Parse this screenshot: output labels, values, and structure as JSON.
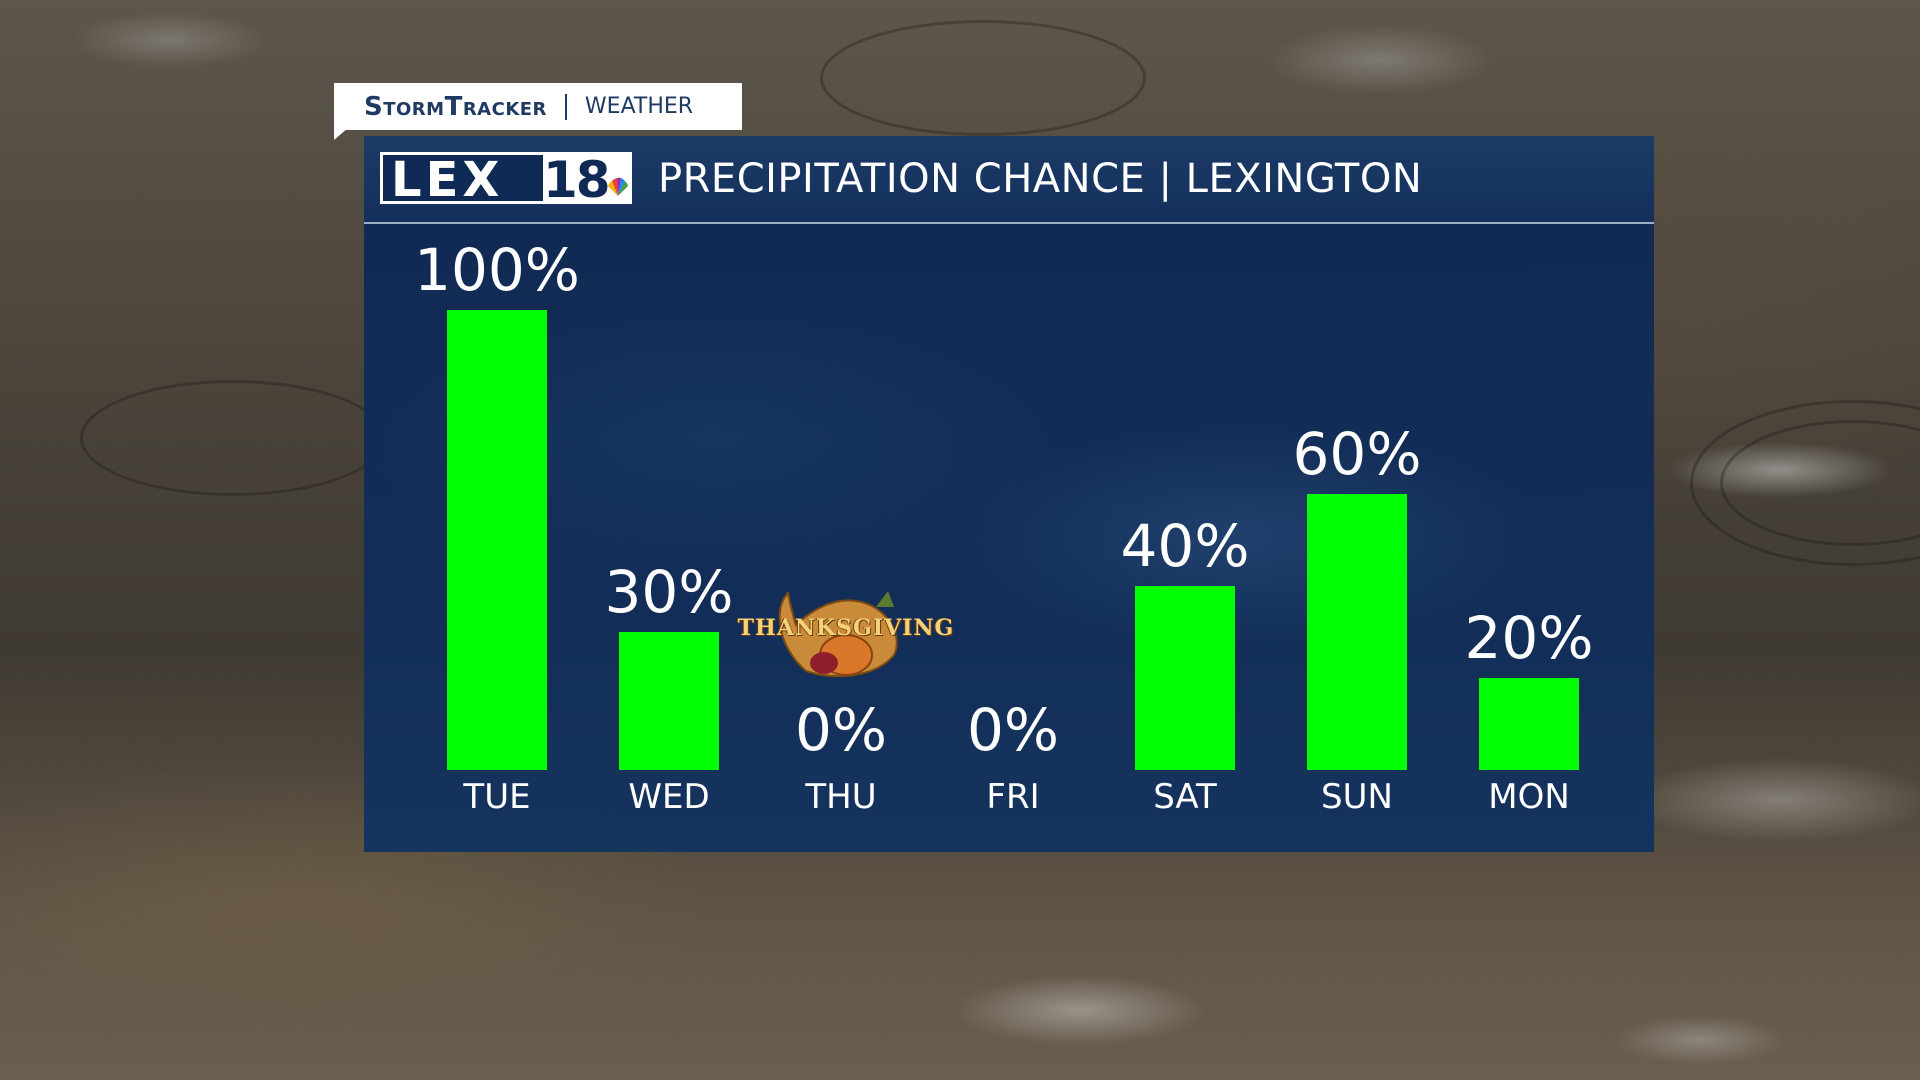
{
  "header_tag": {
    "brand": "StormTracker",
    "section": "WEATHER"
  },
  "logo": {
    "letters": "LEX",
    "number": "18"
  },
  "title": "PRECIPITATION CHANCE | LEXINGTON",
  "annotation": "THANKSGIVING",
  "colors": {
    "bar": "#00ff00",
    "panel": "#0e2a54",
    "text": "#ffffff",
    "brand": "#1f3a63"
  },
  "chart_data": {
    "type": "bar",
    "categories": [
      "TUE",
      "WED",
      "THU",
      "FRI",
      "SAT",
      "SUN",
      "MON"
    ],
    "values": [
      100,
      30,
      0,
      0,
      40,
      60,
      20
    ],
    "value_labels": [
      "100%",
      "30%",
      "0%",
      "0%",
      "40%",
      "60%",
      "20%"
    ],
    "title": "PRECIPITATION CHANCE | LEXINGTON",
    "xlabel": "",
    "ylabel": "",
    "ylim": [
      0,
      100
    ],
    "grid": false,
    "legend": "none"
  }
}
